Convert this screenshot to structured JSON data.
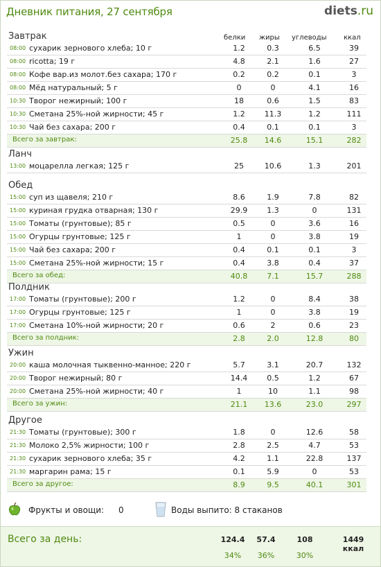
{
  "header": {
    "title": "Дневник питания, 27 сентября",
    "logo_main": "diets",
    "logo_tld": ".ru"
  },
  "columns": {
    "protein": "белки",
    "fat": "жиры",
    "carbs": "углеводы",
    "kcal": "ккал"
  },
  "meals": [
    {
      "title": "Завтрак",
      "rows": [
        {
          "time": "08:00",
          "name": "сухарик зернового хлеба; 10 г",
          "p": "1.2",
          "f": "0.3",
          "c": "6.5",
          "k": "39"
        },
        {
          "time": "08:00",
          "name": "ricotta; 19 г",
          "p": "4.8",
          "f": "2.1",
          "c": "1.6",
          "k": "27"
        },
        {
          "time": "08:00",
          "name": "Кофе вар.из молот.без сахара; 170 г",
          "p": "0.2",
          "f": "0.2",
          "c": "0.1",
          "k": "3"
        },
        {
          "time": "08:00",
          "name": "Мёд натуральный; 5 г",
          "p": "0",
          "f": "0",
          "c": "4.1",
          "k": "16"
        },
        {
          "time": "10:30",
          "name": "Творог нежирный; 100 г",
          "p": "18",
          "f": "0.6",
          "c": "1.5",
          "k": "83"
        },
        {
          "time": "10:30",
          "name": "Сметана 25%-ной жирности; 45 г",
          "p": "1.2",
          "f": "11.3",
          "c": "1.2",
          "k": "111"
        },
        {
          "time": "10:30",
          "name": "Чай без сахара; 200 г",
          "p": "0.4",
          "f": "0.1",
          "c": "0.1",
          "k": "3"
        }
      ],
      "total": {
        "label": "Всего за завтрак:",
        "p": "25.8",
        "f": "14.6",
        "c": "15.1",
        "k": "282"
      }
    },
    {
      "title": "Ланч",
      "rows": [
        {
          "time": "13:00",
          "name": "моцарелла легкая; 125 г",
          "p": "25",
          "f": "10.6",
          "c": "1.3",
          "k": "201"
        }
      ]
    },
    {
      "title": "Обед",
      "rows": [
        {
          "time": "15:00",
          "name": "суп из щавеля; 210 г",
          "p": "8.6",
          "f": "1.9",
          "c": "7.8",
          "k": "82"
        },
        {
          "time": "15:00",
          "name": "куриная грудка отварная; 130 г",
          "p": "29.9",
          "f": "1.3",
          "c": "0",
          "k": "131"
        },
        {
          "time": "15:00",
          "name": "Томаты (грунтовые); 85 г",
          "p": "0.5",
          "f": "0",
          "c": "3.6",
          "k": "16"
        },
        {
          "time": "15:00",
          "name": "Огурцы грунтовые; 125 г",
          "p": "1",
          "f": "0",
          "c": "3.8",
          "k": "19"
        },
        {
          "time": "15:00",
          "name": "Чай без сахара; 200 г",
          "p": "0.4",
          "f": "0.1",
          "c": "0.1",
          "k": "3"
        },
        {
          "time": "15:00",
          "name": "Сметана 25%-ной жирности; 15 г",
          "p": "0.4",
          "f": "3.8",
          "c": "0.4",
          "k": "37"
        }
      ],
      "total": {
        "label": "Всего за обед:",
        "p": "40.8",
        "f": "7.1",
        "c": "15.7",
        "k": "288"
      }
    },
    {
      "title": "Полдник",
      "rows": [
        {
          "time": "17:00",
          "name": "Томаты (грунтовые); 200 г",
          "p": "1.2",
          "f": "0",
          "c": "8.4",
          "k": "38"
        },
        {
          "time": "17:00",
          "name": "Огурцы грунтовые; 125 г",
          "p": "1",
          "f": "0",
          "c": "3.8",
          "k": "19"
        },
        {
          "time": "17:00",
          "name": "Сметана 10%-ной жирности; 20 г",
          "p": "0.6",
          "f": "2",
          "c": "0.6",
          "k": "23"
        }
      ],
      "total": {
        "label": "Всего за полдник:",
        "p": "2.8",
        "f": "2.0",
        "c": "12.8",
        "k": "80"
      }
    },
    {
      "title": "Ужин",
      "rows": [
        {
          "time": "20:00",
          "name": "каша молочная тыквенно-манное; 220 г",
          "p": "5.7",
          "f": "3.1",
          "c": "20.7",
          "k": "132"
        },
        {
          "time": "20:00",
          "name": "Творог нежирный; 80 г",
          "p": "14.4",
          "f": "0.5",
          "c": "1.2",
          "k": "67"
        },
        {
          "time": "20:00",
          "name": "Сметана 25%-ной жирности; 40 г",
          "p": "1",
          "f": "10",
          "c": "1.1",
          "k": "98"
        }
      ],
      "total": {
        "label": "Всего за ужин:",
        "p": "21.1",
        "f": "13.6",
        "c": "23.0",
        "k": "297"
      }
    },
    {
      "title": "Другое",
      "rows": [
        {
          "time": "21:30",
          "name": "Томаты (грунтовые); 300 г",
          "p": "1.8",
          "f": "0",
          "c": "12.6",
          "k": "58"
        },
        {
          "time": "21:30",
          "name": "Молоко 2,5% жирности; 100 г",
          "p": "2.8",
          "f": "2.5",
          "c": "4.7",
          "k": "53"
        },
        {
          "time": "21:30",
          "name": "сухарик зернового хлеба; 35 г",
          "p": "4.2",
          "f": "1.1",
          "c": "22.8",
          "k": "137"
        },
        {
          "time": "21:30",
          "name": "маргарин рама; 15 г",
          "p": "0.1",
          "f": "5.9",
          "c": "0",
          "k": "53"
        }
      ],
      "total": {
        "label": "Всего за другое:",
        "p": "8.9",
        "f": "9.5",
        "c": "40.1",
        "k": "301"
      }
    }
  ],
  "extras": {
    "fruits_label": "Фрукты и овощи:",
    "fruits_value": "0",
    "water_label": "Воды выпито: 8 стаканов"
  },
  "day_total": {
    "label": "Всего за день:",
    "p": "124.4",
    "f": "57.4",
    "c": "108",
    "k": "1449 ккал",
    "pp": "34%",
    "fp": "36%",
    "cp": "30%"
  },
  "colors": {
    "accent": "#4f8a10",
    "total_bg": "#eef6e6"
  }
}
